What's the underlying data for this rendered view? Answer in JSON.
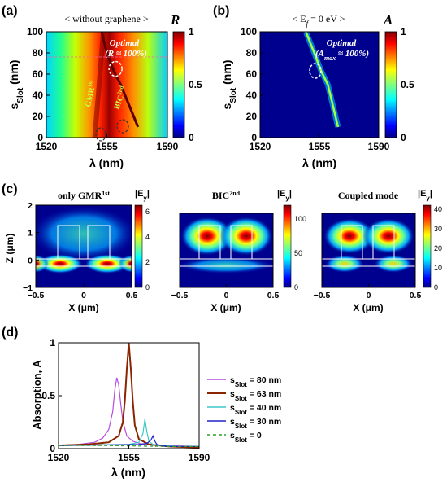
{
  "chart_data": [
    {
      "panel": "(a)",
      "type": "heatmap",
      "title": "< without graphene >",
      "colorbar_label": "R",
      "colorbar_ticks": [
        "1",
        "0.5",
        "0"
      ],
      "xlabel": "λ (nm)",
      "ylabel": "s",
      "ylabel_sub": "Slot",
      "ylabel_unit": " (nm)",
      "xticks": [
        1520,
        1555,
        1590
      ],
      "yticks": [
        0,
        20,
        40,
        60,
        80,
        100
      ],
      "xlim": [
        1520,
        1590
      ],
      "ylim": [
        0,
        100
      ],
      "annotations": {
        "optimal": "Optimal",
        "optimal_sub": "(R ≈ 100%)",
        "gmr": "GMR",
        "gmr_sup": "1st",
        "bic": "BIC",
        "bic_sup": "2nd"
      },
      "gmr_band": {
        "lambda": [
          1548,
          1549,
          1550,
          1551,
          1552,
          1553
        ],
        "s": [
          0,
          20,
          40,
          60,
          80,
          100
        ]
      },
      "bic_band": {
        "lambda": [
          1573,
          1568,
          1563,
          1559,
          1555,
          1552
        ],
        "s": [
          10,
          30,
          50,
          63,
          80,
          100
        ]
      },
      "optimal_point": {
        "lambda": 1560,
        "s": 65
      }
    },
    {
      "panel": "(b)",
      "type": "heatmap",
      "title": "< E",
      "title_sub": "f",
      "title_rest": " = 0 eV >",
      "colorbar_label": "A",
      "colorbar_ticks": [
        "1",
        "0.5",
        "0"
      ],
      "xlabel": "λ (nm)",
      "ylabel": "s",
      "ylabel_sub": "Slot",
      "ylabel_unit": " (nm)",
      "xticks": [
        1520,
        1555,
        1590
      ],
      "yticks": [
        0,
        20,
        40,
        60,
        80,
        100
      ],
      "xlim": [
        1520,
        1590
      ],
      "ylim": [
        0,
        100
      ],
      "annotations": {
        "optimal": "Optimal",
        "optimal_sub": "(A",
        "optimal_sub2": "max",
        "optimal_sub3": " ≈ 100%)"
      },
      "absorption_band": {
        "lambda": [
          1566,
          1563,
          1560,
          1556,
          1552,
          1547
        ],
        "s": [
          10,
          30,
          50,
          63,
          80,
          100
        ]
      }
    },
    {
      "panel": "(c)",
      "type": "heatmap",
      "field_label": "|E",
      "field_sub": "y",
      "field_end": "|",
      "xlabel": "X (μm)",
      "ylabel": "Z (μm)",
      "xticks": [
        "-0.5",
        "0",
        "0.5"
      ],
      "yticks": [
        "-1",
        "0",
        "1",
        "2"
      ],
      "maps": [
        {
          "title": "only GMR",
          "title_sup": "1st",
          "colorbar_ticks": [
            "6",
            "4",
            "2",
            "0"
          ],
          "vmax": 6.5
        },
        {
          "title": "BIC",
          "title_sup": "2nd",
          "colorbar_ticks": [
            "100",
            "50",
            "0"
          ],
          "vmax": 120
        },
        {
          "title": "Coupled mode",
          "title_sup": "",
          "colorbar_ticks": [
            "40",
            "30",
            "20",
            "10",
            "0"
          ],
          "vmax": 42
        }
      ]
    },
    {
      "panel": "(d)",
      "type": "line",
      "xlabel": "λ (nm)",
      "ylabel": "Absorption, A",
      "xticks": [
        1520,
        1555,
        1590
      ],
      "yticks": [
        0,
        0.5,
        1
      ],
      "xlim": [
        1520,
        1590
      ],
      "ylim": [
        0,
        1
      ],
      "series": [
        {
          "name": "s",
          "name_sub": "Slot",
          "name_rest": " = 80 nm",
          "color": "#b54ce0",
          "dash": "",
          "x": [
            1520,
            1530,
            1538,
            1542,
            1545,
            1547,
            1548,
            1549,
            1550,
            1551,
            1552,
            1554,
            1557,
            1562,
            1570,
            1590
          ],
          "y": [
            0.03,
            0.04,
            0.06,
            0.1,
            0.18,
            0.35,
            0.55,
            0.67,
            0.6,
            0.42,
            0.26,
            0.12,
            0.07,
            0.04,
            0.03,
            0.02
          ]
        },
        {
          "name": "s",
          "name_sub": "Slot",
          "name_rest": " = 63 nm",
          "color": "#8b2500",
          "dash": "",
          "x": [
            1520,
            1535,
            1545,
            1550,
            1552,
            1553,
            1554,
            1555,
            1556,
            1557,
            1558,
            1560,
            1565,
            1575,
            1590
          ],
          "y": [
            0.03,
            0.04,
            0.06,
            0.12,
            0.25,
            0.45,
            0.75,
            1.0,
            0.75,
            0.45,
            0.22,
            0.09,
            0.04,
            0.02,
            0.01
          ]
        },
        {
          "name": "s",
          "name_sub": "Slot",
          "name_rest": " = 40 nm",
          "color": "#3cc8c8",
          "dash": "",
          "x": [
            1520,
            1540,
            1555,
            1560,
            1562,
            1563,
            1564,
            1565,
            1567,
            1570,
            1580,
            1590
          ],
          "y": [
            0.03,
            0.035,
            0.04,
            0.06,
            0.14,
            0.28,
            0.16,
            0.07,
            0.04,
            0.03,
            0.02,
            0.02
          ]
        },
        {
          "name": "s",
          "name_sub": "Slot",
          "name_rest": " = 30 nm",
          "color": "#1e24c8",
          "dash": "",
          "x": [
            1520,
            1540,
            1560,
            1564,
            1566,
            1567,
            1568,
            1569,
            1571,
            1575,
            1590
          ],
          "y": [
            0.03,
            0.035,
            0.04,
            0.05,
            0.08,
            0.12,
            0.07,
            0.04,
            0.03,
            0.02,
            0.02
          ]
        },
        {
          "name": "s",
          "name_sub": "Slot",
          "name_rest": " = 0",
          "color": "#2aa02a",
          "dash": "4,3",
          "x": [
            1520,
            1540,
            1560,
            1575,
            1590
          ],
          "y": [
            0.03,
            0.03,
            0.025,
            0.02,
            0.02
          ]
        }
      ]
    }
  ]
}
